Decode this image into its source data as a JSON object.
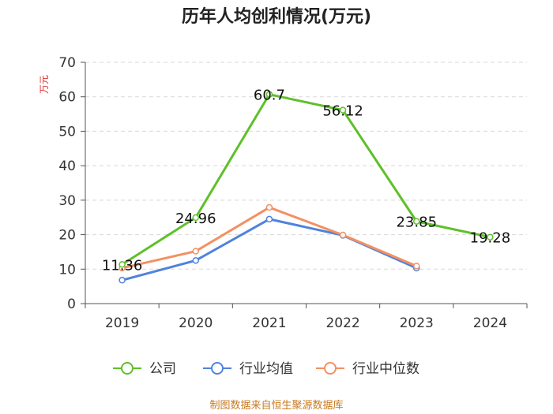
{
  "chart_data": {
    "type": "line",
    "title": "历年人均创利情况(万元)",
    "ylabel": "万元",
    "xlabel": "",
    "categories": [
      "2019",
      "2020",
      "2021",
      "2022",
      "2023",
      "2024"
    ],
    "ylim": [
      0,
      70
    ],
    "yticks": [
      0,
      10,
      20,
      30,
      40,
      50,
      60,
      70
    ],
    "grid": "horizontal dashed",
    "legend_position": "bottom",
    "series": [
      {
        "name": "公司",
        "color": "#5ec02a",
        "values": [
          11.36,
          24.96,
          60.7,
          56.12,
          23.85,
          19.28
        ],
        "labels": [
          "11.36",
          "24.96",
          "60.7",
          "56.12",
          "23.85",
          "19.28"
        ]
      },
      {
        "name": "行业均值",
        "color": "#4f82dd",
        "values": [
          6.8,
          12.5,
          24.5,
          19.8,
          10.3,
          null
        ]
      },
      {
        "name": "行业中位数",
        "color": "#f39062",
        "values": [
          10.3,
          15.2,
          27.9,
          19.9,
          10.9,
          null
        ]
      }
    ]
  },
  "source": "制图数据来自恒生聚源数据库"
}
